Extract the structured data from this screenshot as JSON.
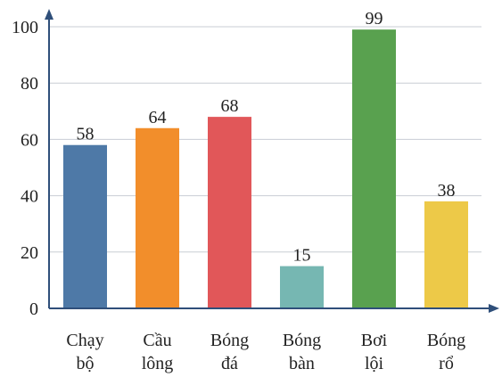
{
  "chart_data": {
    "type": "bar",
    "title": "",
    "xlabel": "",
    "ylabel": "",
    "categories": [
      [
        "Chạy",
        "bộ"
      ],
      [
        "Cầu",
        "lông"
      ],
      [
        "Bóng",
        "đá"
      ],
      [
        "Bóng",
        "bàn"
      ],
      [
        "Bơi",
        "lội"
      ],
      [
        "Bóng",
        "rổ"
      ]
    ],
    "values": [
      58,
      64,
      68,
      15,
      99,
      38
    ],
    "data_labels": [
      "58",
      "64",
      "68",
      "15",
      "99",
      "38"
    ],
    "colors": [
      "#4e79a7",
      "#f28e2b",
      "#e15759",
      "#76b7b2",
      "#59a14f",
      "#edc948"
    ],
    "ylim": [
      0,
      100
    ],
    "yticks": [
      "0",
      "20",
      "40",
      "60",
      "80",
      "100"
    ],
    "grid": true,
    "axis_color": "#2f4f7a",
    "grid_color": "#c8cdd4"
  }
}
